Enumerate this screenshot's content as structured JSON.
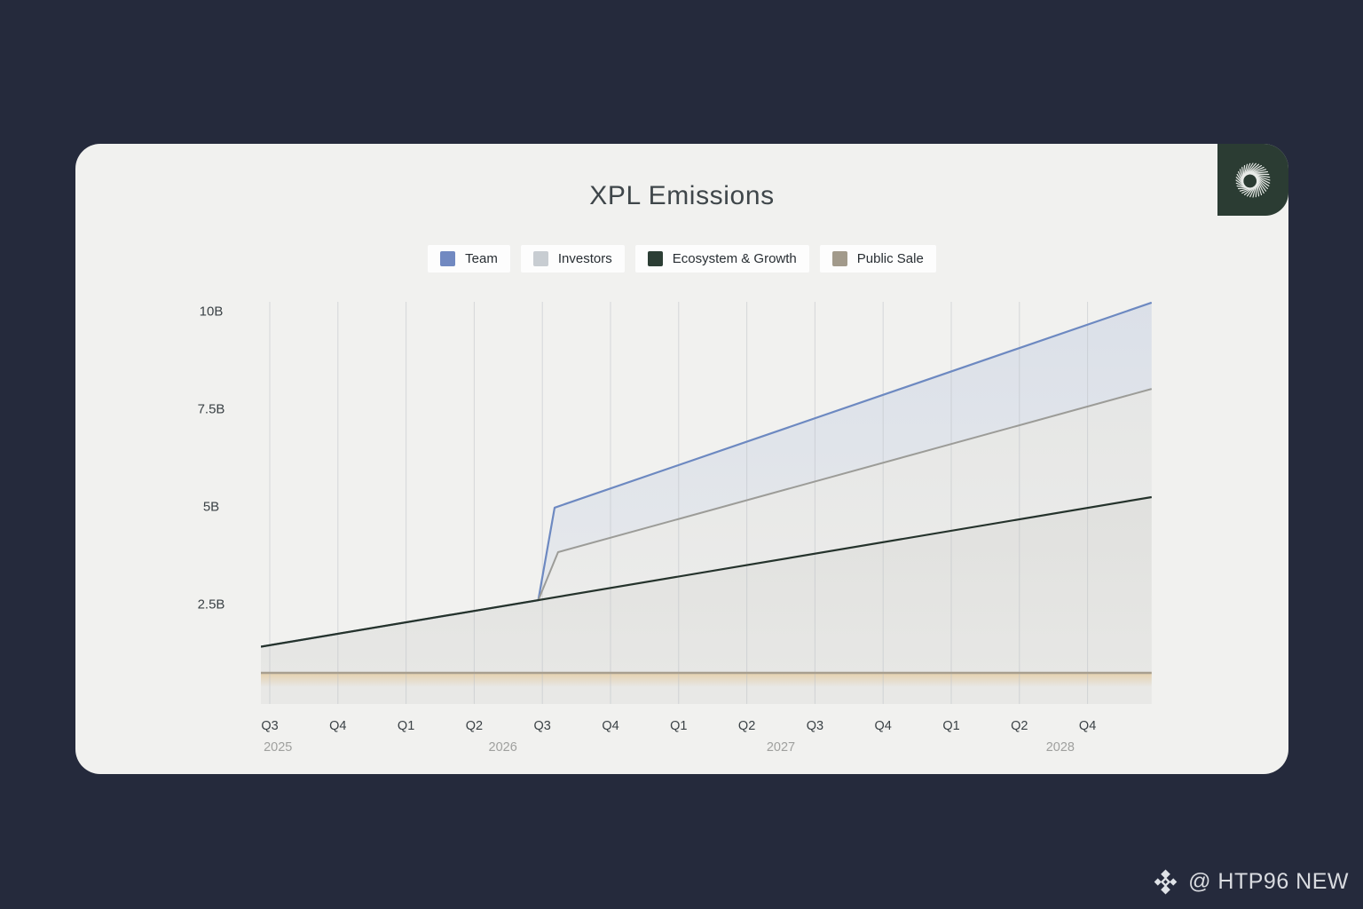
{
  "page": {
    "background_color": "#252a3c",
    "watermark": {
      "text": "@ HTP96 NEW",
      "icon": "binance-diamond-logo",
      "color": "#d9dbe0"
    }
  },
  "card": {
    "background_color": "#f1f1ef",
    "corner_logo": {
      "icon": "spiral-aperture-logo",
      "background_color": "#2b3c33",
      "glyph_color": "#e9ece9"
    }
  },
  "chart_data": {
    "type": "area",
    "stacked": true,
    "title": "XPL Emissions",
    "unit": "billions of XPL tokens",
    "ylim": [
      0,
      10.25
    ],
    "grid": "vertical-only",
    "legend_position": "top-center",
    "x_axis": {
      "start": "Q3 2025",
      "end": "Q4 2028",
      "note": "quarterly ticks; t is quarters since Q3 2025"
    },
    "y_ticks": [
      {
        "label": "10B",
        "value": 10
      },
      {
        "label": "7.5B",
        "value": 7.5
      },
      {
        "label": "5B",
        "value": 5
      },
      {
        "label": "2.5B",
        "value": 2.5
      }
    ],
    "x_ticks": [
      {
        "label": "Q3",
        "t": 0
      },
      {
        "label": "Q4",
        "t": 1
      },
      {
        "label": "Q1",
        "t": 2
      },
      {
        "label": "Q2",
        "t": 3
      },
      {
        "label": "Q3",
        "t": 4
      },
      {
        "label": "Q4",
        "t": 5
      },
      {
        "label": "Q1",
        "t": 6
      },
      {
        "label": "Q2",
        "t": 7
      },
      {
        "label": "Q3",
        "t": 8
      },
      {
        "label": "Q4",
        "t": 9
      },
      {
        "label": "Q1",
        "t": 10
      },
      {
        "label": "Q2",
        "t": 11
      },
      {
        "label": "Q4",
        "t": 12
      }
    ],
    "year_labels": [
      {
        "label": "2025",
        "t": 0.12
      },
      {
        "label": "2026",
        "t": 3.42
      },
      {
        "label": "2027",
        "t": 7.5
      },
      {
        "label": "2028",
        "t": 11.6
      }
    ],
    "legend": [
      {
        "label": "Team",
        "color": "#7189c1"
      },
      {
        "label": "Investors",
        "color": "#c8cdd2"
      },
      {
        "label": "Ecosystem & Growth",
        "color": "#2c3e35"
      },
      {
        "label": "Public Sale",
        "color": "#a29a8b"
      }
    ],
    "series": [
      {
        "name": "Public Sale",
        "role": "cumulative-boundary",
        "line_color": "#a89f8f",
        "line_width": 2.4,
        "fill_top": "rgba(228,196,144,0.65)",
        "fill_bottom": "rgba(228,196,144,0)",
        "fill_fade_at": 0.45,
        "points": [
          [
            -0.13,
            0.75
          ],
          [
            12.94,
            0.75
          ]
        ]
      },
      {
        "name": "Ecosystem & Growth",
        "role": "cumulative-boundary",
        "line_color": "#25332c",
        "line_width": 2.2,
        "fill_top": "rgba(128,130,126,0.15)",
        "fill_bottom": "rgba(128,130,126,0.08)",
        "fill_fade_at": 1,
        "points": [
          [
            -0.13,
            1.42
          ],
          [
            12.94,
            5.25
          ]
        ]
      },
      {
        "name": "Investors",
        "role": "cumulative-boundary",
        "line_color": "#9c9c98",
        "line_width": 2,
        "fill_top": "rgba(130,136,142,0.10)",
        "fill_bottom": "rgba(130,136,142,0.04)",
        "fill_fade_at": 1,
        "points": [
          [
            -0.13,
            1.42
          ],
          [
            3.94,
            2.61
          ],
          [
            4.23,
            3.84
          ],
          [
            12.94,
            8.02
          ]
        ]
      },
      {
        "name": "Team",
        "role": "cumulative-boundary",
        "line_color": "#6d89c1",
        "line_width": 2.2,
        "fill_top": "rgba(110,140,200,0.17)",
        "fill_bottom": "rgba(110,140,200,0.07)",
        "fill_fade_at": 1,
        "points": [
          [
            -0.13,
            1.42
          ],
          [
            3.94,
            2.61
          ],
          [
            4.18,
            4.98
          ],
          [
            12.94,
            10.23
          ]
        ]
      }
    ]
  }
}
